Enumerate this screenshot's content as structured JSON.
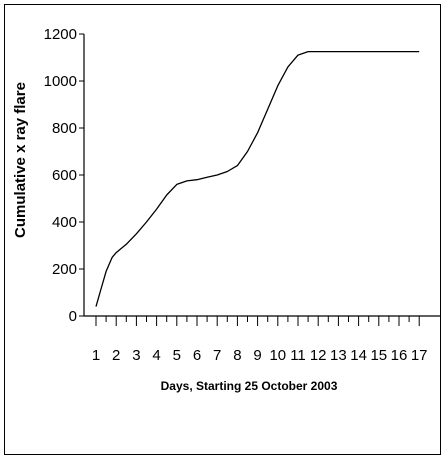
{
  "chart_data": {
    "type": "line",
    "title": "",
    "xlabel": "Days, Starting  25 October 2003",
    "ylabel": "Cumulative  x  ray flare",
    "xlim": [
      1,
      17
    ],
    "ylim": [
      0,
      1200
    ],
    "x_ticks": [
      "1",
      "2",
      "3",
      "4",
      "5",
      "6",
      "7",
      "8",
      "9",
      "10",
      "11",
      "12",
      "13",
      "14",
      "15",
      "16",
      "17"
    ],
    "y_ticks": [
      "0",
      "200",
      "400",
      "600",
      "800",
      "1000",
      "1200"
    ],
    "grid": false,
    "legend": "none",
    "line_color": "#000000",
    "series": [
      {
        "x": [
          1.0,
          1.2,
          1.5,
          1.8,
          2.0,
          2.5,
          3.0,
          3.5,
          4.0,
          4.5,
          5.0,
          5.5,
          6.0,
          6.5,
          7.0,
          7.5,
          8.0,
          8.5,
          9.0,
          9.5,
          10.0,
          10.5,
          11.0,
          11.5,
          12.0,
          13.0,
          14.0,
          15.0,
          16.0,
          17.0
        ],
        "y": [
          40,
          100,
          190,
          250,
          270,
          305,
          350,
          400,
          455,
          515,
          560,
          575,
          580,
          590,
          600,
          615,
          640,
          700,
          780,
          880,
          980,
          1060,
          1110,
          1125,
          1125,
          1125,
          1125,
          1125,
          1125,
          1125
        ]
      }
    ]
  }
}
